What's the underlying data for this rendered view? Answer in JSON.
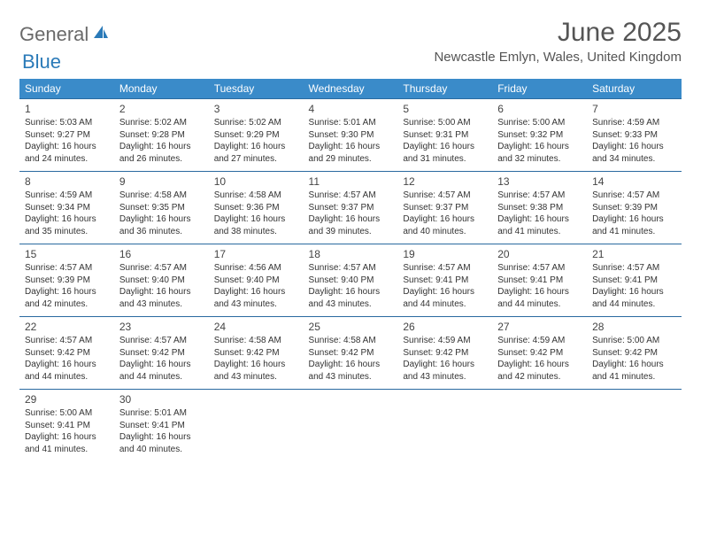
{
  "brand": {
    "general": "General",
    "blue": "Blue",
    "color_primary": "#3a8bc9",
    "color_text": "#6a6a6a"
  },
  "title": {
    "month": "June 2025",
    "location": "Newcastle Emlyn, Wales, United Kingdom"
  },
  "weekdays": [
    "Sunday",
    "Monday",
    "Tuesday",
    "Wednesday",
    "Thursday",
    "Friday",
    "Saturday"
  ],
  "weeks": [
    [
      {
        "n": "1",
        "sunrise": "Sunrise: 5:03 AM",
        "sunset": "Sunset: 9:27 PM",
        "day": "Daylight: 16 hours and 24 minutes."
      },
      {
        "n": "2",
        "sunrise": "Sunrise: 5:02 AM",
        "sunset": "Sunset: 9:28 PM",
        "day": "Daylight: 16 hours and 26 minutes."
      },
      {
        "n": "3",
        "sunrise": "Sunrise: 5:02 AM",
        "sunset": "Sunset: 9:29 PM",
        "day": "Daylight: 16 hours and 27 minutes."
      },
      {
        "n": "4",
        "sunrise": "Sunrise: 5:01 AM",
        "sunset": "Sunset: 9:30 PM",
        "day": "Daylight: 16 hours and 29 minutes."
      },
      {
        "n": "5",
        "sunrise": "Sunrise: 5:00 AM",
        "sunset": "Sunset: 9:31 PM",
        "day": "Daylight: 16 hours and 31 minutes."
      },
      {
        "n": "6",
        "sunrise": "Sunrise: 5:00 AM",
        "sunset": "Sunset: 9:32 PM",
        "day": "Daylight: 16 hours and 32 minutes."
      },
      {
        "n": "7",
        "sunrise": "Sunrise: 4:59 AM",
        "sunset": "Sunset: 9:33 PM",
        "day": "Daylight: 16 hours and 34 minutes."
      }
    ],
    [
      {
        "n": "8",
        "sunrise": "Sunrise: 4:59 AM",
        "sunset": "Sunset: 9:34 PM",
        "day": "Daylight: 16 hours and 35 minutes."
      },
      {
        "n": "9",
        "sunrise": "Sunrise: 4:58 AM",
        "sunset": "Sunset: 9:35 PM",
        "day": "Daylight: 16 hours and 36 minutes."
      },
      {
        "n": "10",
        "sunrise": "Sunrise: 4:58 AM",
        "sunset": "Sunset: 9:36 PM",
        "day": "Daylight: 16 hours and 38 minutes."
      },
      {
        "n": "11",
        "sunrise": "Sunrise: 4:57 AM",
        "sunset": "Sunset: 9:37 PM",
        "day": "Daylight: 16 hours and 39 minutes."
      },
      {
        "n": "12",
        "sunrise": "Sunrise: 4:57 AM",
        "sunset": "Sunset: 9:37 PM",
        "day": "Daylight: 16 hours and 40 minutes."
      },
      {
        "n": "13",
        "sunrise": "Sunrise: 4:57 AM",
        "sunset": "Sunset: 9:38 PM",
        "day": "Daylight: 16 hours and 41 minutes."
      },
      {
        "n": "14",
        "sunrise": "Sunrise: 4:57 AM",
        "sunset": "Sunset: 9:39 PM",
        "day": "Daylight: 16 hours and 41 minutes."
      }
    ],
    [
      {
        "n": "15",
        "sunrise": "Sunrise: 4:57 AM",
        "sunset": "Sunset: 9:39 PM",
        "day": "Daylight: 16 hours and 42 minutes."
      },
      {
        "n": "16",
        "sunrise": "Sunrise: 4:57 AM",
        "sunset": "Sunset: 9:40 PM",
        "day": "Daylight: 16 hours and 43 minutes."
      },
      {
        "n": "17",
        "sunrise": "Sunrise: 4:56 AM",
        "sunset": "Sunset: 9:40 PM",
        "day": "Daylight: 16 hours and 43 minutes."
      },
      {
        "n": "18",
        "sunrise": "Sunrise: 4:57 AM",
        "sunset": "Sunset: 9:40 PM",
        "day": "Daylight: 16 hours and 43 minutes."
      },
      {
        "n": "19",
        "sunrise": "Sunrise: 4:57 AM",
        "sunset": "Sunset: 9:41 PM",
        "day": "Daylight: 16 hours and 44 minutes."
      },
      {
        "n": "20",
        "sunrise": "Sunrise: 4:57 AM",
        "sunset": "Sunset: 9:41 PM",
        "day": "Daylight: 16 hours and 44 minutes."
      },
      {
        "n": "21",
        "sunrise": "Sunrise: 4:57 AM",
        "sunset": "Sunset: 9:41 PM",
        "day": "Daylight: 16 hours and 44 minutes."
      }
    ],
    [
      {
        "n": "22",
        "sunrise": "Sunrise: 4:57 AM",
        "sunset": "Sunset: 9:42 PM",
        "day": "Daylight: 16 hours and 44 minutes."
      },
      {
        "n": "23",
        "sunrise": "Sunrise: 4:57 AM",
        "sunset": "Sunset: 9:42 PM",
        "day": "Daylight: 16 hours and 44 minutes."
      },
      {
        "n": "24",
        "sunrise": "Sunrise: 4:58 AM",
        "sunset": "Sunset: 9:42 PM",
        "day": "Daylight: 16 hours and 43 minutes."
      },
      {
        "n": "25",
        "sunrise": "Sunrise: 4:58 AM",
        "sunset": "Sunset: 9:42 PM",
        "day": "Daylight: 16 hours and 43 minutes."
      },
      {
        "n": "26",
        "sunrise": "Sunrise: 4:59 AM",
        "sunset": "Sunset: 9:42 PM",
        "day": "Daylight: 16 hours and 43 minutes."
      },
      {
        "n": "27",
        "sunrise": "Sunrise: 4:59 AM",
        "sunset": "Sunset: 9:42 PM",
        "day": "Daylight: 16 hours and 42 minutes."
      },
      {
        "n": "28",
        "sunrise": "Sunrise: 5:00 AM",
        "sunset": "Sunset: 9:42 PM",
        "day": "Daylight: 16 hours and 41 minutes."
      }
    ],
    [
      {
        "n": "29",
        "sunrise": "Sunrise: 5:00 AM",
        "sunset": "Sunset: 9:41 PM",
        "day": "Daylight: 16 hours and 41 minutes."
      },
      {
        "n": "30",
        "sunrise": "Sunrise: 5:01 AM",
        "sunset": "Sunset: 9:41 PM",
        "day": "Daylight: 16 hours and 40 minutes."
      },
      null,
      null,
      null,
      null,
      null
    ]
  ]
}
